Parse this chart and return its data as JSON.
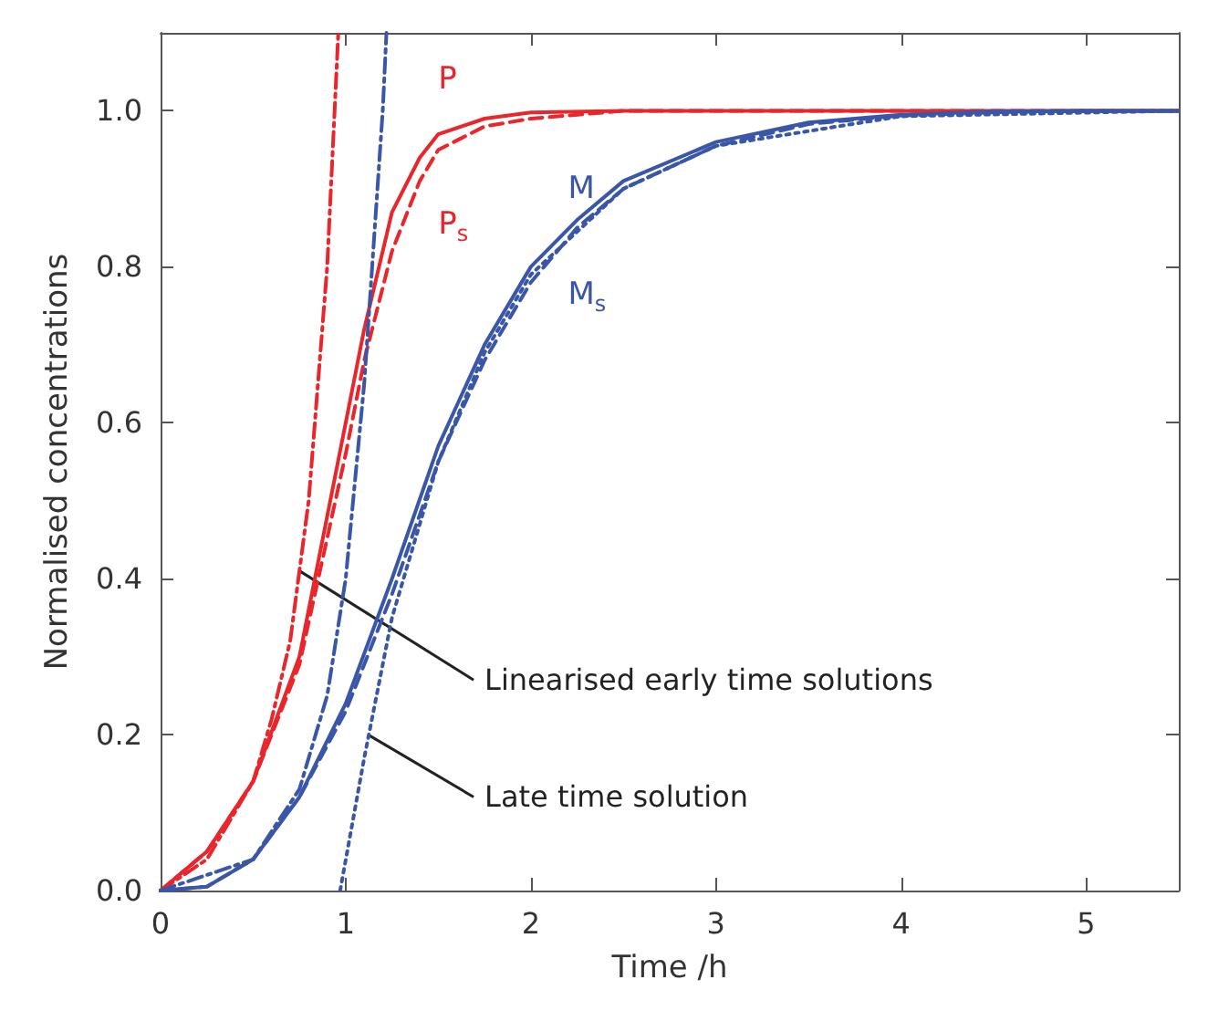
{
  "chart_data": {
    "type": "line",
    "xlabel": "Time /h",
    "ylabel": "Normalised concentrations",
    "xlim": [
      0,
      5.5
    ],
    "ylim": [
      0,
      1.1
    ],
    "xticks": [
      0,
      1,
      2,
      3,
      4,
      5
    ],
    "yticks": [
      {
        "value": 0,
        "label": "0.0"
      },
      {
        "value": 0.2,
        "label": "0.2"
      },
      {
        "value": 0.4,
        "label": "0.4"
      },
      {
        "value": 0.6,
        "label": "0.6"
      },
      {
        "value": 0.8,
        "label": "0.8"
      },
      {
        "value": 1,
        "label": "1.0"
      }
    ],
    "grid": false,
    "legend": false,
    "marker": "none",
    "series": [
      {
        "name": "P",
        "color": "#e8262b",
        "line_style": "solid",
        "x": [
          0,
          0.25,
          0.5,
          0.75,
          1.0,
          1.1,
          1.25,
          1.4,
          1.5,
          1.75,
          2.0,
          2.5,
          3,
          4,
          5,
          5.5
        ],
        "values": [
          0,
          0.05,
          0.14,
          0.3,
          0.6,
          0.72,
          0.87,
          0.94,
          0.97,
          0.99,
          0.998,
          1,
          1,
          1,
          1,
          1
        ]
      },
      {
        "name": "P$_{s}$",
        "color": "#e8262b",
        "line_style": "dashed",
        "x": [
          0,
          0.25,
          0.5,
          0.75,
          1.0,
          1.1,
          1.25,
          1.4,
          1.5,
          1.75,
          2.0,
          2.5,
          3,
          4,
          5,
          5.5
        ],
        "values": [
          0,
          0.05,
          0.14,
          0.29,
          0.56,
          0.68,
          0.82,
          0.91,
          0.95,
          0.98,
          0.99,
          1,
          1,
          1,
          1,
          1
        ]
      },
      {
        "name": "M",
        "color": "#3a56a8",
        "line_style": "solid",
        "x": [
          0,
          0.25,
          0.5,
          0.75,
          1.0,
          1.25,
          1.5,
          1.75,
          2.0,
          2.25,
          2.5,
          3,
          3.5,
          4,
          4.5,
          5,
          5.5
        ],
        "values": [
          0,
          0.005,
          0.04,
          0.12,
          0.24,
          0.4,
          0.57,
          0.7,
          0.8,
          0.86,
          0.91,
          0.96,
          0.985,
          0.995,
          0.999,
          1,
          1
        ]
      },
      {
        "name": "M$_{s}$",
        "color": "#3a56a8",
        "line_style": "dashed",
        "x": [
          0,
          0.25,
          0.5,
          0.75,
          1.0,
          1.25,
          1.5,
          1.75,
          2.0,
          2.25,
          2.5,
          3,
          3.5,
          4,
          4.5,
          5,
          5.5
        ],
        "values": [
          0,
          0.005,
          0.04,
          0.12,
          0.23,
          0.38,
          0.55,
          0.68,
          0.78,
          0.85,
          0.9,
          0.955,
          0.983,
          0.994,
          0.998,
          1,
          1
        ]
      },
      {
        "color": "#e8262b",
        "line_style": "dashdot",
        "x": [
          0,
          0.25,
          0.5,
          0.6,
          0.7,
          0.8,
          0.9,
          0.96
        ],
        "values": [
          0,
          0.04,
          0.14,
          0.22,
          0.32,
          0.5,
          0.8,
          1.1
        ]
      },
      {
        "color": "#3a56a8",
        "line_style": "dashdot",
        "x": [
          0,
          0.5,
          0.75,
          0.9,
          1.0,
          1.1,
          1.2,
          1.22
        ],
        "values": [
          0,
          0.04,
          0.13,
          0.25,
          0.4,
          0.65,
          1.0,
          1.1
        ]
      },
      {
        "color": "#3a56a8",
        "line_style": "dotted",
        "x": [
          0.97,
          1.1,
          1.25,
          1.5,
          1.75,
          2.0,
          2.5,
          3,
          4,
          5.5
        ],
        "values": [
          0,
          0.17,
          0.35,
          0.55,
          0.69,
          0.79,
          0.9,
          0.955,
          0.993,
          1
        ]
      }
    ],
    "annotations": [
      {
        "text": "Linearised early time solutions",
        "x": 0.75,
        "y": 0.41
      },
      {
        "text": "Late time solution",
        "x": 1.12,
        "y": 0.2
      }
    ]
  }
}
